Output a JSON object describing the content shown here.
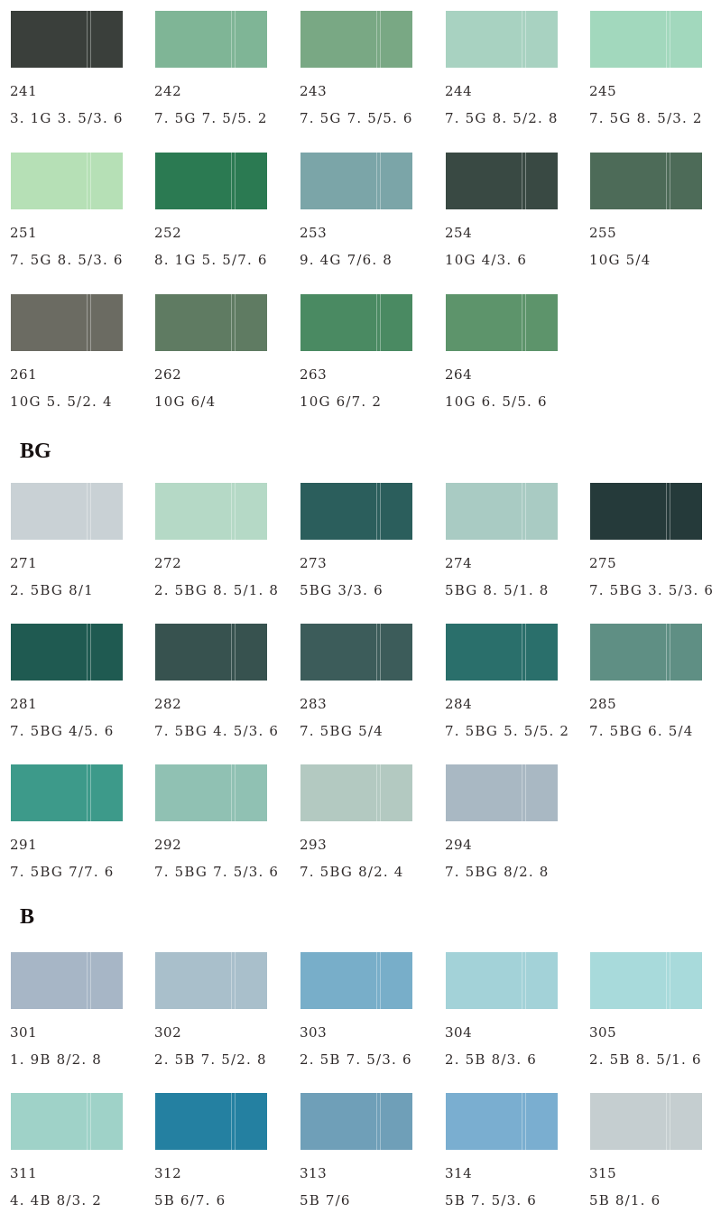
{
  "sections": [
    {
      "heading": "",
      "swatches": [
        {
          "number": "241",
          "code": "3. 1G 3. 5/3. 6",
          "color": "#3a3f3b"
        },
        {
          "number": "242",
          "code": "7. 5G 7. 5/5. 2",
          "color": "#7fb596"
        },
        {
          "number": "243",
          "code": "7. 5G 7. 5/5. 6",
          "color": "#79a884"
        },
        {
          "number": "244",
          "code": "7. 5G 8. 5/2. 8",
          "color": "#a8d2c1"
        },
        {
          "number": "245",
          "code": "7. 5G 8. 5/3. 2",
          "color": "#a2d8bd"
        },
        {
          "number": "251",
          "code": "7. 5G 8. 5/3. 6",
          "color": "#b6e0b6"
        },
        {
          "number": "252",
          "code": "8. 1G 5. 5/7. 6",
          "color": "#2b7a52"
        },
        {
          "number": "253",
          "code": "9. 4G 7/6. 8",
          "color": "#7ba5a8"
        },
        {
          "number": "254",
          "code": "10G 4/3. 6",
          "color": "#394943"
        },
        {
          "number": "255",
          "code": "10G 5/4",
          "color": "#4d6b58"
        },
        {
          "number": "261",
          "code": "10G 5. 5/2. 4",
          "color": "#6b6b62"
        },
        {
          "number": "262",
          "code": "10G 6/4",
          "color": "#5f7b62"
        },
        {
          "number": "263",
          "code": "10G 6/7. 2",
          "color": "#4a8a62"
        },
        {
          "number": "264",
          "code": "10G 6. 5/5. 6",
          "color": "#5d946b"
        }
      ]
    },
    {
      "heading": "BG",
      "swatches": [
        {
          "number": "271",
          "code": "2. 5BG 8/1",
          "color": "#c9d1d5"
        },
        {
          "number": "272",
          "code": "2. 5BG 8. 5/1. 8",
          "color": "#b5d9c6"
        },
        {
          "number": "273",
          "code": "5BG 3/3. 6",
          "color": "#2b5e5c"
        },
        {
          "number": "274",
          "code": "5BG 8. 5/1. 8",
          "color": "#a9cbc3"
        },
        {
          "number": "275",
          "code": "7. 5BG 3. 5/3. 6",
          "color": "#253a3a"
        },
        {
          "number": "281",
          "code": "7. 5BG 4/5. 6",
          "color": "#1f5a51"
        },
        {
          "number": "282",
          "code": "7. 5BG 4. 5/3. 6",
          "color": "#37524f"
        },
        {
          "number": "283",
          "code": "7. 5BG 5/4",
          "color": "#3c5c5a"
        },
        {
          "number": "284",
          "code": "7. 5BG 5. 5/5. 2",
          "color": "#2a6f6b"
        },
        {
          "number": "285",
          "code": "7. 5BG 6. 5/4",
          "color": "#5f8f84"
        },
        {
          "number": "291",
          "code": "7. 5BG 7/7. 6",
          "color": "#3d9a8a"
        },
        {
          "number": "292",
          "code": "7. 5BG 7. 5/3. 6",
          "color": "#90c1b3"
        },
        {
          "number": "293",
          "code": "7. 5BG 8/2. 4",
          "color": "#b3c9c1"
        },
        {
          "number": "294",
          "code": "7. 5BG 8/2. 8",
          "color": "#a9b8c3"
        }
      ]
    },
    {
      "heading": "B",
      "swatches": [
        {
          "number": "301",
          "code": "1. 9B 8/2. 8",
          "color": "#a7b6c6"
        },
        {
          "number": "302",
          "code": "2. 5B 7. 5/2. 8",
          "color": "#a9bfcb"
        },
        {
          "number": "303",
          "code": "2. 5B 7. 5/3. 6",
          "color": "#78aec9"
        },
        {
          "number": "304",
          "code": "2. 5B 8/3. 6",
          "color": "#a3d2d8"
        },
        {
          "number": "305",
          "code": "2. 5B 8. 5/1. 6",
          "color": "#a8dadb"
        },
        {
          "number": "311",
          "code": "4. 4B 8/3. 2",
          "color": "#9fd2c8"
        },
        {
          "number": "312",
          "code": "5B 6/7. 6",
          "color": "#2480a1"
        },
        {
          "number": "313",
          "code": "5B 7/6",
          "color": "#6f9fb8"
        },
        {
          "number": "314",
          "code": "5B 7. 5/3. 6",
          "color": "#7aaed0"
        },
        {
          "number": "315",
          "code": "5B 8/1. 6",
          "color": "#c5ced0"
        }
      ]
    }
  ]
}
